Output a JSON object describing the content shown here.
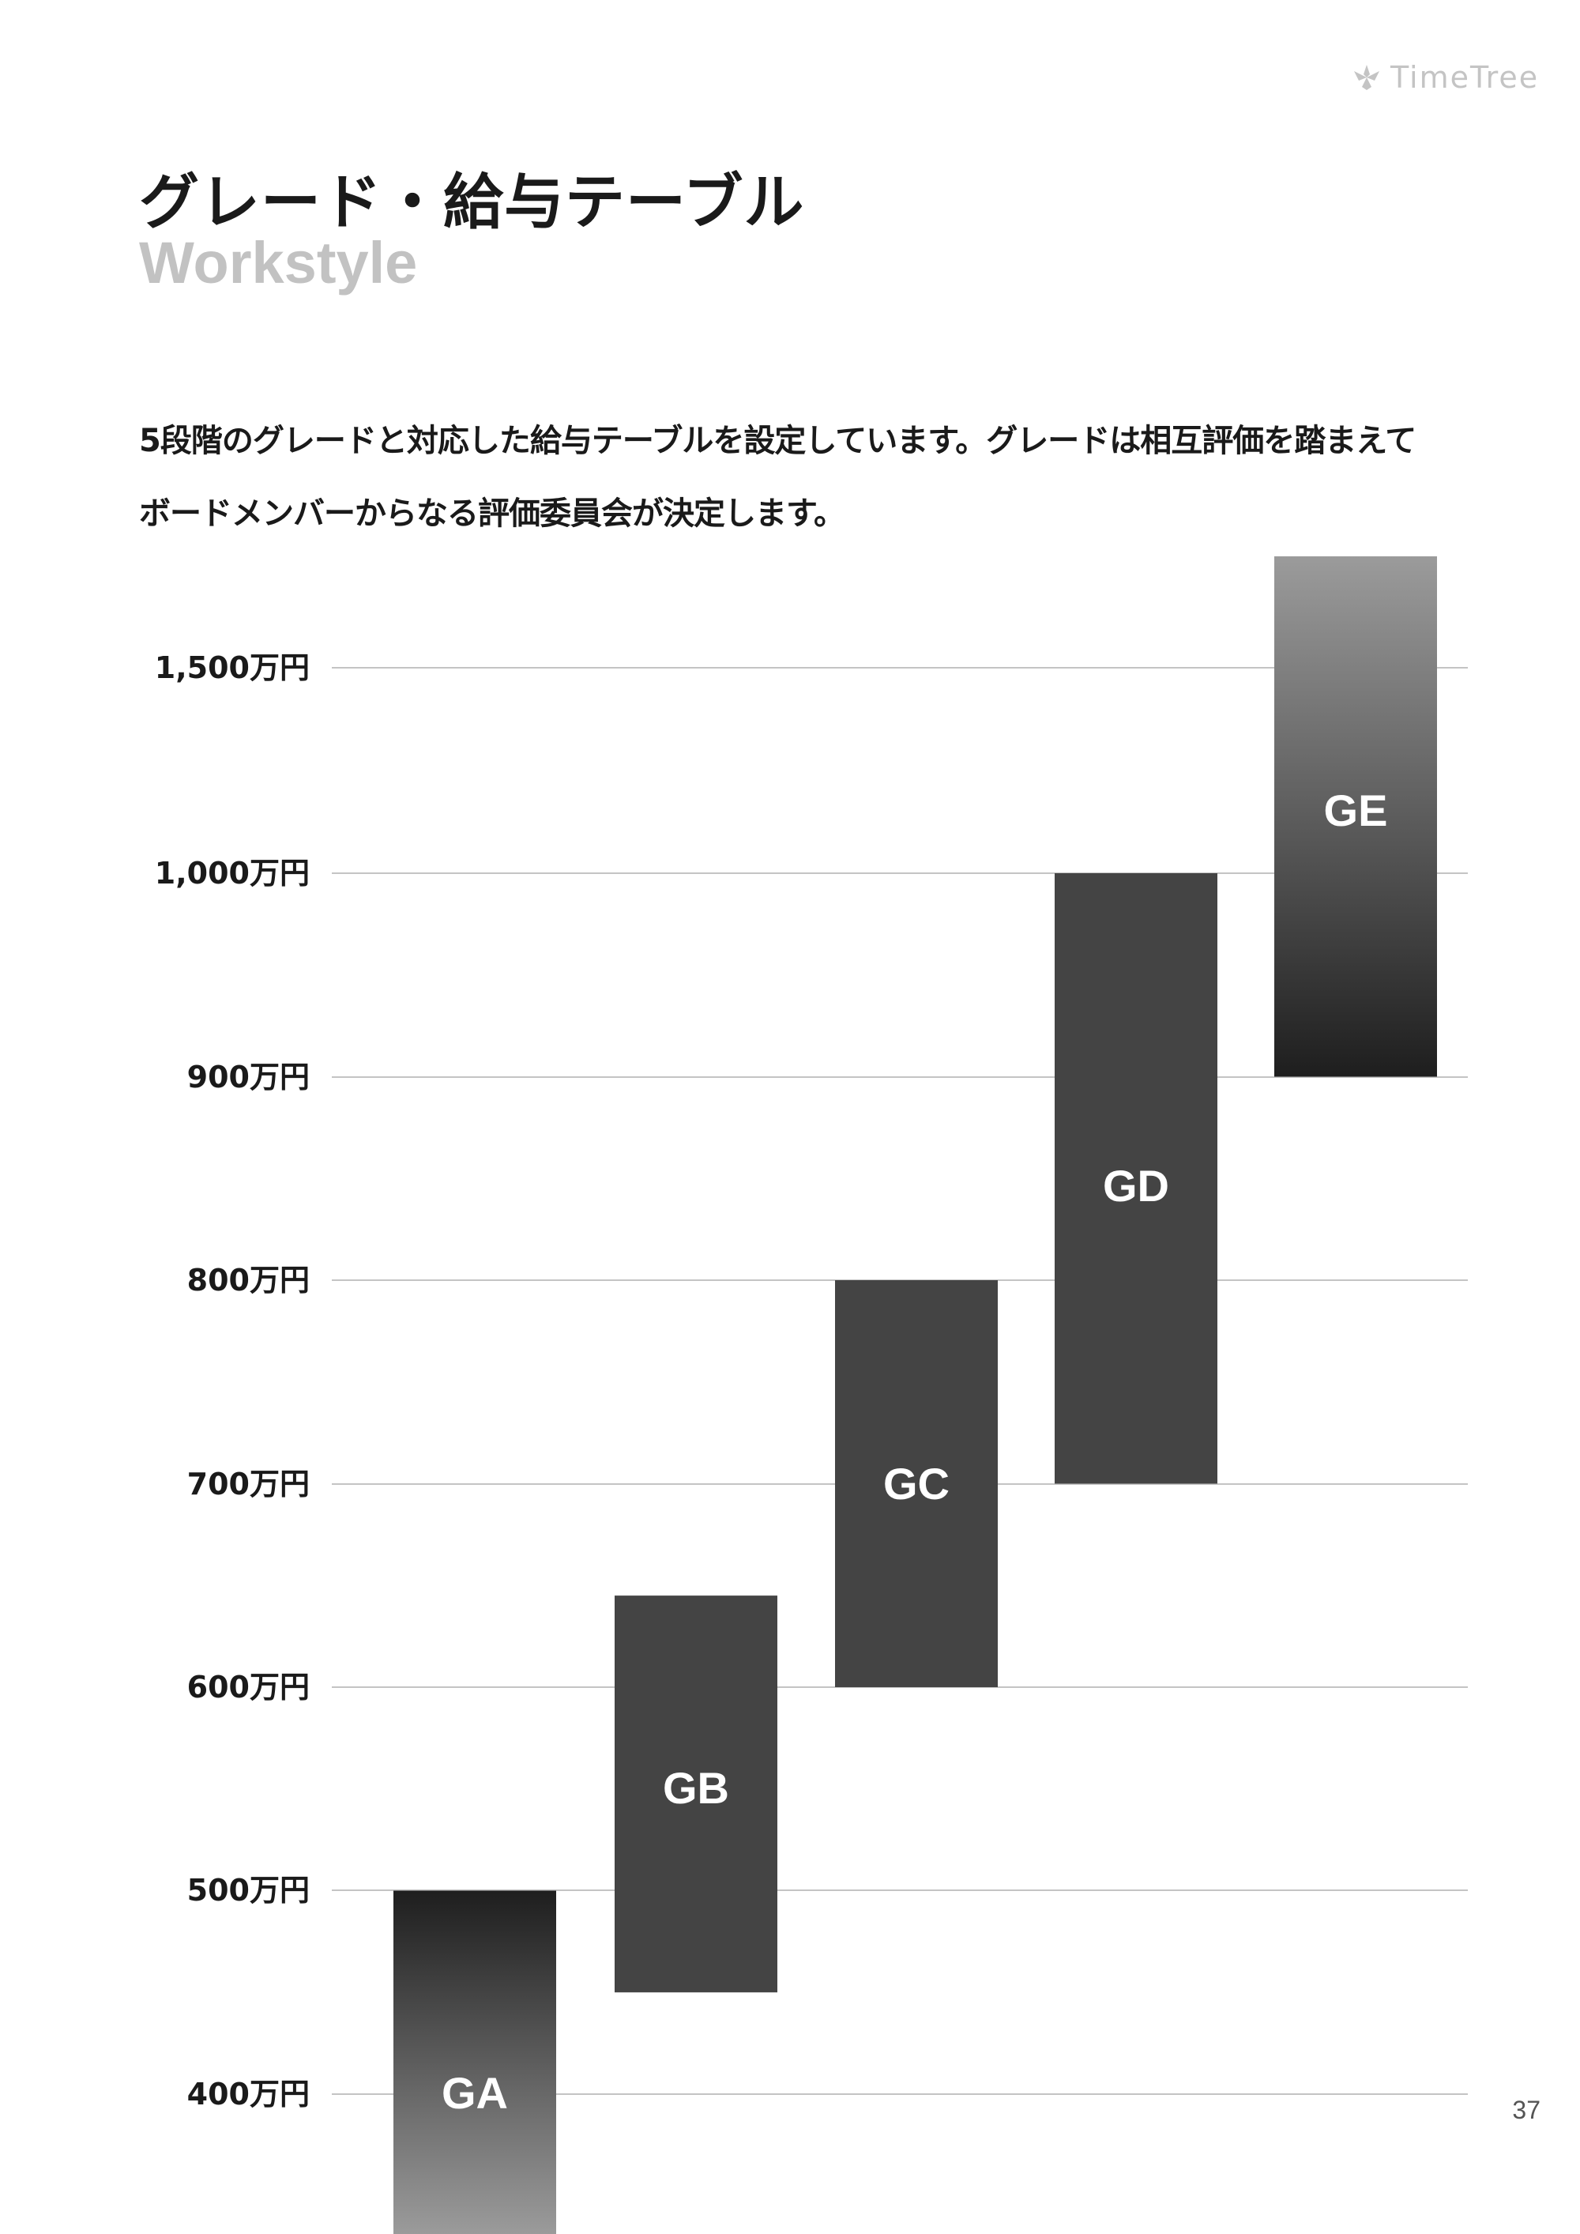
{
  "header": {
    "logo_text": "TimeTree",
    "logo_icon": "tree-leaf-icon"
  },
  "title": "グレード・給与テーブル",
  "subtitle": "Workstyle",
  "description": "5段階のグレードと対応した給与テーブルを設定しています。グレードは相互評価を踏まえてボードメンバーからなる評価委員会が決定します。",
  "page_number": "37",
  "chart_data": {
    "type": "bar",
    "subtype": "floating-range",
    "title": "",
    "xlabel": "",
    "ylabel": "",
    "yticks": [
      "400万円",
      "500万円",
      "600万円",
      "700万円",
      "800万円",
      "900万円",
      "1,000万円",
      "1,500万円"
    ],
    "categories": [
      "GA",
      "GB",
      "GC",
      "GD",
      "GE"
    ],
    "ranges": [
      {
        "label": "GA",
        "low": "below 400万円",
        "high": 500
      },
      {
        "label": "GB",
        "low": 450,
        "high": 645
      },
      {
        "label": "GC",
        "low": 600,
        "high": 800
      },
      {
        "label": "GD",
        "low": 700,
        "high": 1000
      },
      {
        "label": "GE",
        "low": 900,
        "high": "above 1,500万円"
      }
    ],
    "unit": "万円",
    "grid": true,
    "legend": "none",
    "colors": {
      "solid": "#444444",
      "gradient_dark": "#1e1e1e",
      "gradient_light": "#9b9b9b",
      "grid": "#c4c4c4"
    }
  }
}
